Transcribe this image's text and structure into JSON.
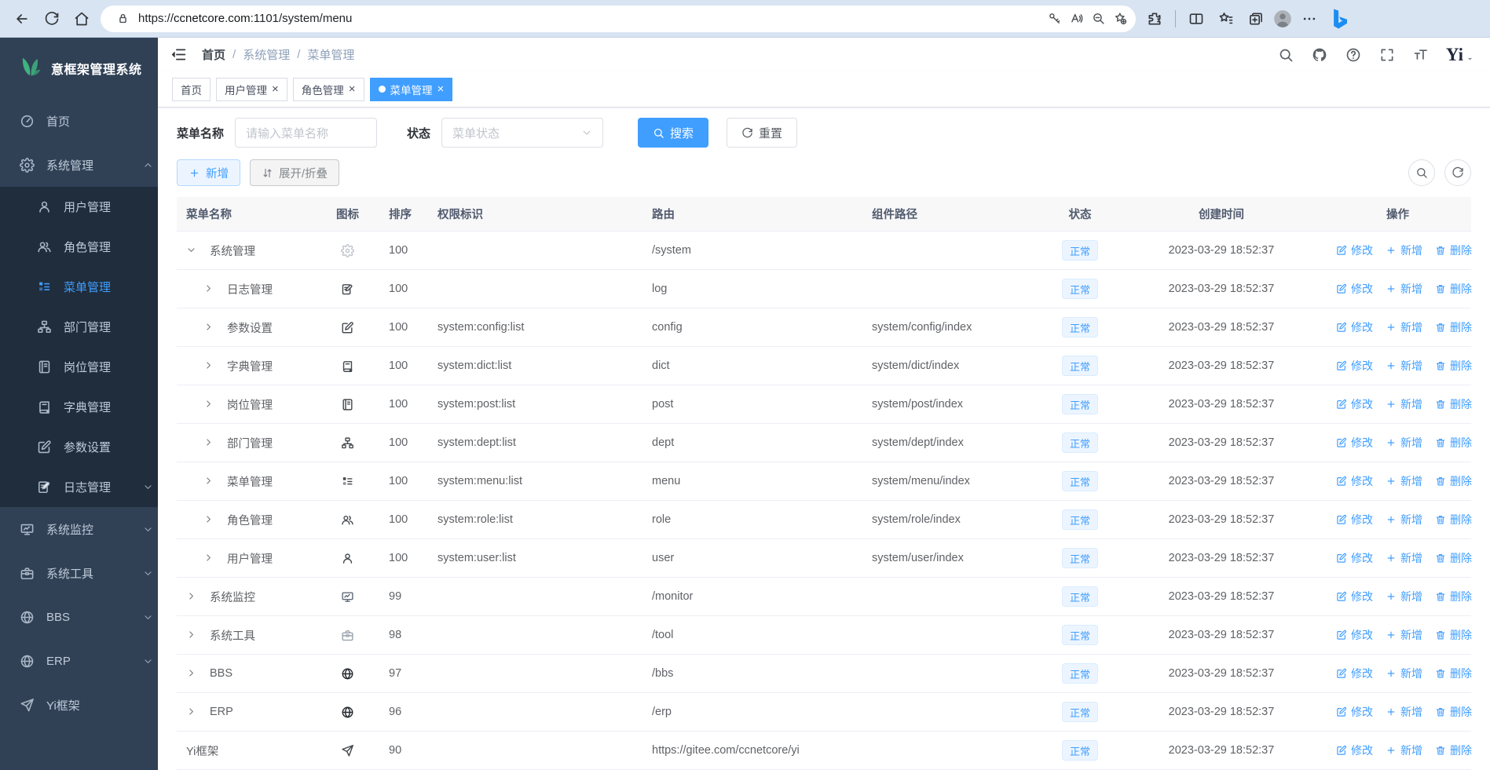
{
  "browser": {
    "url_prefix": "https://",
    "url_domain": "ccnetcore.com",
    "url_path": ":1101/system/menu"
  },
  "sidebar": {
    "title": "意框架管理系统",
    "items": [
      {
        "label": "首页",
        "icon": "dashboard",
        "level": 0
      },
      {
        "label": "系统管理",
        "icon": "gear",
        "level": 0,
        "chevron": "up"
      },
      {
        "label": "用户管理",
        "icon": "user",
        "level": 1
      },
      {
        "label": "角色管理",
        "icon": "users",
        "level": 1
      },
      {
        "label": "菜单管理",
        "icon": "tree",
        "level": 1,
        "active": true
      },
      {
        "label": "部门管理",
        "icon": "org",
        "level": 1
      },
      {
        "label": "岗位管理",
        "icon": "post",
        "level": 1
      },
      {
        "label": "字典管理",
        "icon": "dict",
        "level": 1
      },
      {
        "label": "参数设置",
        "icon": "editpen",
        "level": 1
      },
      {
        "label": "日志管理",
        "icon": "log",
        "level": 1,
        "chevron": "down"
      },
      {
        "label": "系统监控",
        "icon": "monitor",
        "level": 0,
        "chevron": "down"
      },
      {
        "label": "系统工具",
        "icon": "toolbox",
        "level": 0,
        "chevron": "down"
      },
      {
        "label": "BBS",
        "icon": "globe",
        "level": 0,
        "chevron": "down"
      },
      {
        "label": "ERP",
        "icon": "globe",
        "level": 0,
        "chevron": "down"
      },
      {
        "label": "Yi框架",
        "icon": "plane",
        "level": 0
      }
    ]
  },
  "topbar": {
    "breadcrumb": [
      "首页",
      "系统管理",
      "菜单管理"
    ]
  },
  "tabs": [
    {
      "label": "首页",
      "closable": false,
      "active": false
    },
    {
      "label": "用户管理",
      "closable": true,
      "active": false
    },
    {
      "label": "角色管理",
      "closable": true,
      "active": false
    },
    {
      "label": "菜单管理",
      "closable": true,
      "active": true
    }
  ],
  "filters": {
    "name_label": "菜单名称",
    "name_placeholder": "请输入菜单名称",
    "status_label": "状态",
    "status_placeholder": "菜单状态",
    "search_label": "搜索",
    "reset_label": "重置"
  },
  "toolbar": {
    "add_label": "新增",
    "toggle_label": "展开/折叠"
  },
  "table": {
    "columns": [
      "菜单名称",
      "图标",
      "排序",
      "权限标识",
      "路由",
      "组件路径",
      "状态",
      "创建时间",
      "操作"
    ],
    "status_normal": "正常",
    "created_at": "2023-03-29 18:52:37",
    "op_edit": "修改",
    "op_add": "新增",
    "op_delete": "删除",
    "rows": [
      {
        "name": "系统管理",
        "icon": "gear",
        "icon_color": "#c0c4cc",
        "sort": "100",
        "perm": "",
        "route": "/system",
        "component": "",
        "level": 0,
        "arrow": "down"
      },
      {
        "name": "日志管理",
        "icon": "log",
        "icon_color": "#45494e",
        "sort": "100",
        "perm": "",
        "route": "log",
        "component": "",
        "level": 1,
        "arrow": "right"
      },
      {
        "name": "参数设置",
        "icon": "editpen",
        "icon_color": "#45494e",
        "sort": "100",
        "perm": "system:config:list",
        "route": "config",
        "component": "system/config/index",
        "level": 1,
        "arrow": "right"
      },
      {
        "name": "字典管理",
        "icon": "dict",
        "icon_color": "#45494e",
        "sort": "100",
        "perm": "system:dict:list",
        "route": "dict",
        "component": "system/dict/index",
        "level": 1,
        "arrow": "right"
      },
      {
        "name": "岗位管理",
        "icon": "post",
        "icon_color": "#45494e",
        "sort": "100",
        "perm": "system:post:list",
        "route": "post",
        "component": "system/post/index",
        "level": 1,
        "arrow": "right"
      },
      {
        "name": "部门管理",
        "icon": "org",
        "icon_color": "#45494e",
        "sort": "100",
        "perm": "system:dept:list",
        "route": "dept",
        "component": "system/dept/index",
        "level": 1,
        "arrow": "right"
      },
      {
        "name": "菜单管理",
        "icon": "tree",
        "icon_color": "#45494e",
        "sort": "100",
        "perm": "system:menu:list",
        "route": "menu",
        "component": "system/menu/index",
        "level": 1,
        "arrow": "right"
      },
      {
        "name": "角色管理",
        "icon": "users",
        "icon_color": "#45494e",
        "sort": "100",
        "perm": "system:role:list",
        "route": "role",
        "component": "system/role/index",
        "level": 1,
        "arrow": "right"
      },
      {
        "name": "用户管理",
        "icon": "user",
        "icon_color": "#45494e",
        "sort": "100",
        "perm": "system:user:list",
        "route": "user",
        "component": "system/user/index",
        "level": 1,
        "arrow": "right"
      },
      {
        "name": "系统监控",
        "icon": "monitor",
        "icon_color": "#5f6b77",
        "sort": "99",
        "perm": "",
        "route": "/monitor",
        "component": "",
        "level": 0,
        "arrow": "right"
      },
      {
        "name": "系统工具",
        "icon": "toolbox",
        "icon_color": "#9aa3ad",
        "sort": "98",
        "perm": "",
        "route": "/tool",
        "component": "",
        "level": 0,
        "arrow": "right"
      },
      {
        "name": "BBS",
        "icon": "globe",
        "icon_color": "#23272d",
        "sort": "97",
        "perm": "",
        "route": "/bbs",
        "component": "",
        "level": 0,
        "arrow": "right"
      },
      {
        "name": "ERP",
        "icon": "globe",
        "icon_color": "#23272d",
        "sort": "96",
        "perm": "",
        "route": "/erp",
        "component": "",
        "level": 0,
        "arrow": "right"
      },
      {
        "name": "Yi框架",
        "icon": "plane",
        "icon_color": "#45494e",
        "sort": "90",
        "perm": "",
        "route": "https://gitee.com/ccnetcore/yi",
        "component": "",
        "level": 0,
        "arrow": "none"
      }
    ]
  }
}
